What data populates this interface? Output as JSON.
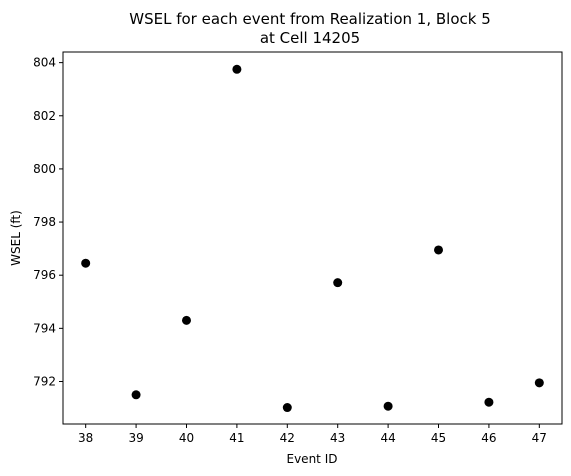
{
  "chart_data": {
    "type": "scatter",
    "title_line1": "WSEL for each event from Realization 1, Block 5",
    "title_line2": "at Cell 14205",
    "xlabel": "Event ID",
    "ylabel": "WSEL (ft)",
    "x_ticks": [
      "38",
      "39",
      "40",
      "41",
      "42",
      "43",
      "44",
      "45",
      "46",
      "47"
    ],
    "y_ticks": [
      "792",
      "794",
      "796",
      "798",
      "800",
      "802",
      "804"
    ],
    "xlim": [
      37.55,
      47.45
    ],
    "ylim": [
      790.4,
      804.4
    ],
    "grid": false,
    "marker_color": "#000000",
    "points": [
      {
        "x": 38,
        "y": 796.45
      },
      {
        "x": 39,
        "y": 791.5
      },
      {
        "x": 40,
        "y": 794.3
      },
      {
        "x": 41,
        "y": 803.75
      },
      {
        "x": 42,
        "y": 791.02
      },
      {
        "x": 43,
        "y": 795.72
      },
      {
        "x": 44,
        "y": 791.07
      },
      {
        "x": 45,
        "y": 796.95
      },
      {
        "x": 46,
        "y": 791.22
      },
      {
        "x": 47,
        "y": 791.95
      }
    ]
  }
}
